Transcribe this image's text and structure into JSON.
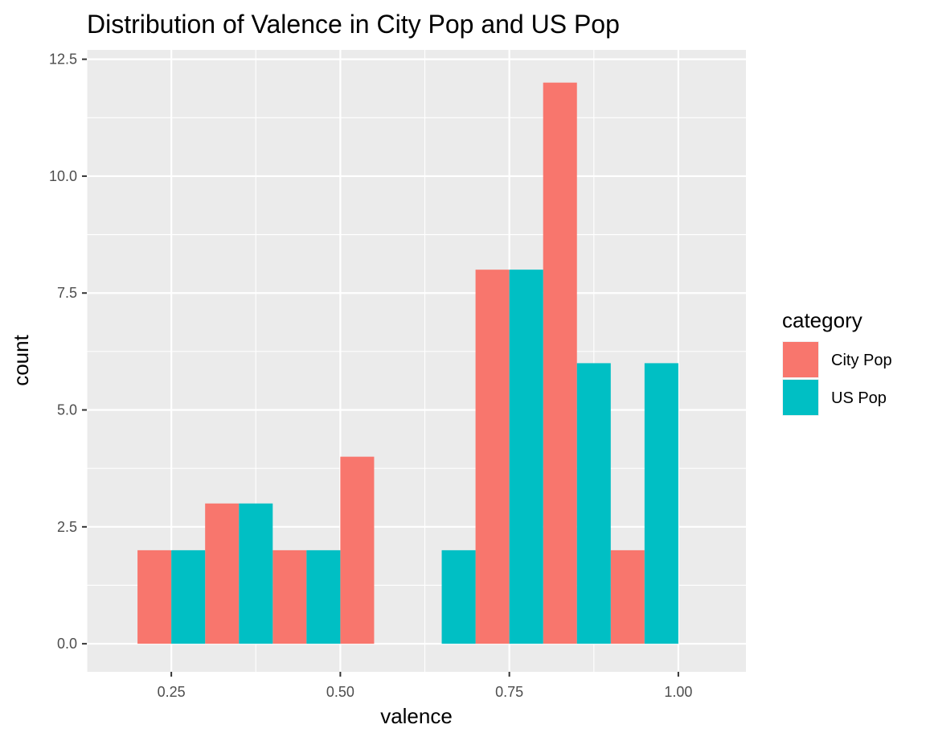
{
  "chart_data": {
    "type": "bar",
    "title": "Distribution of Valence in City Pop and US Pop",
    "xlabel": "valence",
    "ylabel": "count",
    "xlim": [
      0.125,
      1.1
    ],
    "ylim": [
      -0.6,
      12.7
    ],
    "x_ticks": [
      0.25,
      0.5,
      0.75,
      1.0
    ],
    "x_tick_labels": [
      "0.25",
      "0.50",
      "0.75",
      "1.00"
    ],
    "y_ticks": [
      0,
      2.5,
      5,
      7.5,
      10,
      12.5
    ],
    "y_tick_labels": [
      "0.0",
      "2.5",
      "5.0",
      "7.5",
      "10.0",
      "12.5"
    ],
    "grid": true,
    "legend": {
      "title": "category",
      "position": "right"
    },
    "bin_width": 0.1,
    "series": [
      {
        "name": "City Pop",
        "color": "#F8766D",
        "bins": [
          {
            "x": 0.25,
            "value": 2
          },
          {
            "x": 0.35,
            "value": 3
          },
          {
            "x": 0.45,
            "value": 2
          },
          {
            "x": 0.55,
            "value": 4
          },
          {
            "x": 0.65,
            "value": 0
          },
          {
            "x": 0.75,
            "value": 8
          },
          {
            "x": 0.85,
            "value": 12
          },
          {
            "x": 0.95,
            "value": 2
          }
        ]
      },
      {
        "name": "US Pop",
        "color": "#00BFC4",
        "bins": [
          {
            "x": 0.25,
            "value": 2
          },
          {
            "x": 0.35,
            "value": 3
          },
          {
            "x": 0.45,
            "value": 2
          },
          {
            "x": 0.65,
            "value": 2
          },
          {
            "x": 0.75,
            "value": 8
          },
          {
            "x": 0.85,
            "value": 6
          },
          {
            "x": 0.95,
            "value": 6
          }
        ]
      }
    ]
  }
}
